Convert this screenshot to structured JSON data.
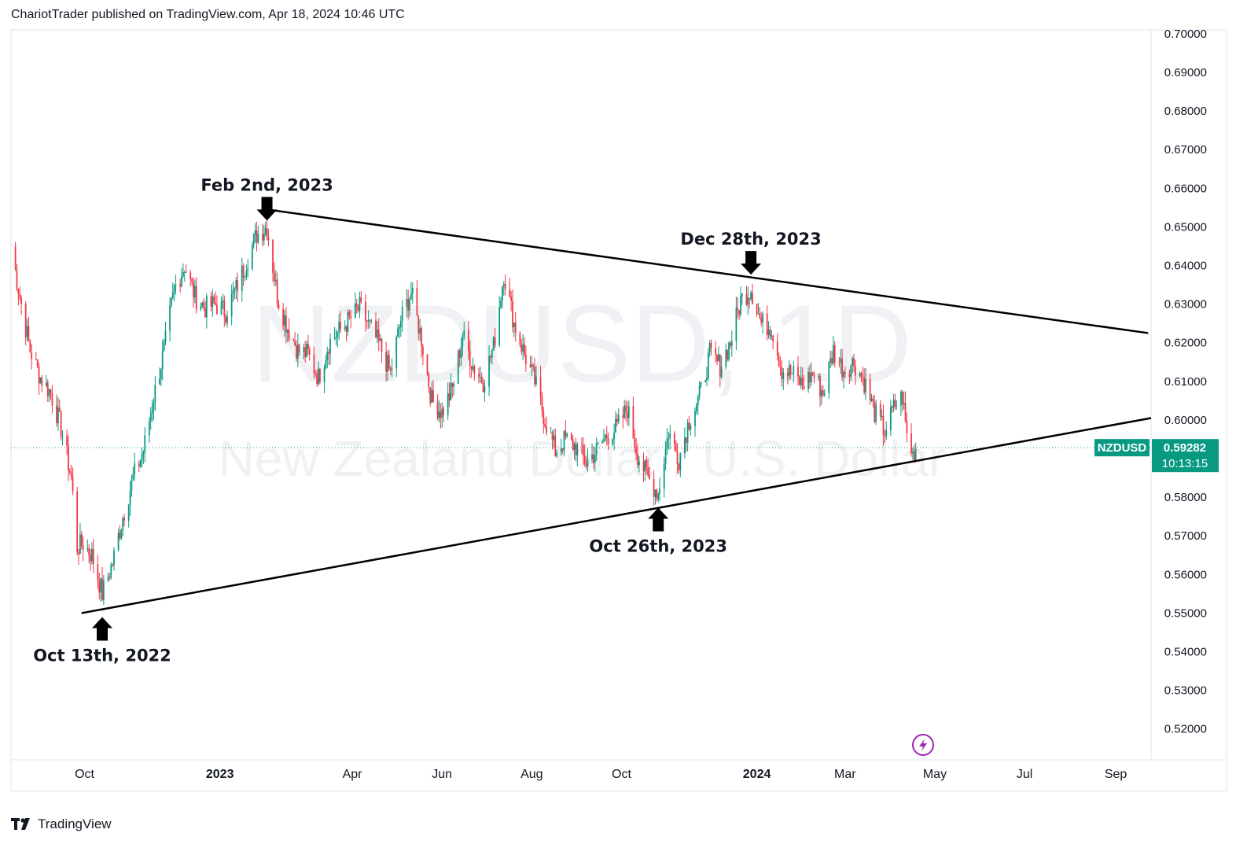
{
  "header": {
    "published_text": "ChariotTrader published on TradingView.com, Apr 18, 2024 10:46 UTC"
  },
  "watermark": {
    "symbol_line": "NZDUSD, 1D",
    "name_line": "New Zealand Dollar / U.S. Dollar"
  },
  "price_badge": {
    "symbol": "NZDUSD",
    "price": "0.59282",
    "countdown": "10:13:15",
    "value": 0.59282,
    "color": "#089981"
  },
  "footer": {
    "brand": "TradingView"
  },
  "icons": {
    "lightning": "lightning-icon",
    "logo": "tradingview-logo-icon"
  },
  "chart_data": {
    "type": "candlestick",
    "title": "NZDUSD, 1D",
    "ylim": [
      0.512,
      0.701
    ],
    "y_ticks": [
      "0.70000",
      "0.69000",
      "0.68000",
      "0.67000",
      "0.66000",
      "0.65000",
      "0.64000",
      "0.63000",
      "0.62000",
      "0.61000",
      "0.60000",
      "0.59000",
      "0.58000",
      "0.57000",
      "0.56000",
      "0.55000",
      "0.54000",
      "0.53000",
      "0.52000"
    ],
    "x_ticks": [
      {
        "label": "Oct",
        "date": "2022-10-01"
      },
      {
        "label": "2023",
        "date": "2023-01-01"
      },
      {
        "label": "Apr",
        "date": "2023-04-01"
      },
      {
        "label": "Jun",
        "date": "2023-06-01"
      },
      {
        "label": "Aug",
        "date": "2023-08-01"
      },
      {
        "label": "Oct",
        "date": "2023-10-01"
      },
      {
        "label": "2024",
        "date": "2024-01-01"
      },
      {
        "label": "Mar",
        "date": "2024-03-01"
      },
      {
        "label": "May",
        "date": "2024-05-01"
      },
      {
        "label": "Jul",
        "date": "2024-07-01"
      },
      {
        "label": "Sep",
        "date": "2024-09-01"
      }
    ],
    "x_range": [
      "2022-08-12",
      "2024-09-25"
    ],
    "up_color": "#089981",
    "down_color": "#f23645",
    "price_path": [
      [
        "2022-08-12",
        0.645
      ],
      [
        "2022-08-18",
        0.632
      ],
      [
        "2022-08-25",
        0.618
      ],
      [
        "2022-09-01",
        0.611
      ],
      [
        "2022-09-08",
        0.607
      ],
      [
        "2022-09-15",
        0.598
      ],
      [
        "2022-09-22",
        0.585
      ],
      [
        "2022-09-26",
        0.567
      ],
      [
        "2022-09-30",
        0.568
      ],
      [
        "2022-10-06",
        0.565
      ],
      [
        "2022-10-13",
        0.555
      ],
      [
        "2022-10-20",
        0.563
      ],
      [
        "2022-10-27",
        0.575
      ],
      [
        "2022-11-03",
        0.585
      ],
      [
        "2022-11-10",
        0.592
      ],
      [
        "2022-11-17",
        0.606
      ],
      [
        "2022-11-24",
        0.618
      ],
      [
        "2022-12-01",
        0.634
      ],
      [
        "2022-12-08",
        0.64
      ],
      [
        "2022-12-15",
        0.632
      ],
      [
        "2022-12-22",
        0.629
      ],
      [
        "2022-12-29",
        0.63
      ],
      [
        "2023-01-05",
        0.628
      ],
      [
        "2023-01-12",
        0.634
      ],
      [
        "2023-01-19",
        0.641
      ],
      [
        "2023-01-26",
        0.648
      ],
      [
        "2023-02-02",
        0.65
      ],
      [
        "2023-02-09",
        0.632
      ],
      [
        "2023-02-16",
        0.624
      ],
      [
        "2023-02-23",
        0.618
      ],
      [
        "2023-03-02",
        0.617
      ],
      [
        "2023-03-09",
        0.611
      ],
      [
        "2023-03-16",
        0.62
      ],
      [
        "2023-03-23",
        0.623
      ],
      [
        "2023-03-30",
        0.626
      ],
      [
        "2023-04-06",
        0.629
      ],
      [
        "2023-04-13",
        0.624
      ],
      [
        "2023-04-20",
        0.619
      ],
      [
        "2023-04-27",
        0.612
      ],
      [
        "2023-05-04",
        0.626
      ],
      [
        "2023-05-11",
        0.633
      ],
      [
        "2023-05-18",
        0.621
      ],
      [
        "2023-05-25",
        0.605
      ],
      [
        "2023-06-01",
        0.602
      ],
      [
        "2023-06-08",
        0.608
      ],
      [
        "2023-06-15",
        0.622
      ],
      [
        "2023-06-22",
        0.614
      ],
      [
        "2023-06-29",
        0.61
      ],
      [
        "2023-07-06",
        0.619
      ],
      [
        "2023-07-13",
        0.638
      ],
      [
        "2023-07-20",
        0.625
      ],
      [
        "2023-07-27",
        0.617
      ],
      [
        "2023-08-03",
        0.61
      ],
      [
        "2023-08-10",
        0.6
      ],
      [
        "2023-08-17",
        0.592
      ],
      [
        "2023-08-24",
        0.595
      ],
      [
        "2023-08-31",
        0.593
      ],
      [
        "2023-09-07",
        0.589
      ],
      [
        "2023-09-14",
        0.592
      ],
      [
        "2023-09-21",
        0.596
      ],
      [
        "2023-09-28",
        0.598
      ],
      [
        "2023-10-05",
        0.603
      ],
      [
        "2023-10-12",
        0.591
      ],
      [
        "2023-10-19",
        0.585
      ],
      [
        "2023-10-26",
        0.581
      ],
      [
        "2023-11-02",
        0.597
      ],
      [
        "2023-11-09",
        0.59
      ],
      [
        "2023-11-16",
        0.6
      ],
      [
        "2023-11-23",
        0.606
      ],
      [
        "2023-11-30",
        0.617
      ],
      [
        "2023-12-07",
        0.614
      ],
      [
        "2023-12-14",
        0.62
      ],
      [
        "2023-12-21",
        0.631
      ],
      [
        "2023-12-28",
        0.634
      ],
      [
        "2024-01-04",
        0.625
      ],
      [
        "2024-01-11",
        0.624
      ],
      [
        "2024-01-18",
        0.613
      ],
      [
        "2024-01-25",
        0.612
      ],
      [
        "2024-02-01",
        0.609
      ],
      [
        "2024-02-08",
        0.612
      ],
      [
        "2024-02-15",
        0.607
      ],
      [
        "2024-02-22",
        0.618
      ],
      [
        "2024-02-29",
        0.613
      ],
      [
        "2024-03-07",
        0.615
      ],
      [
        "2024-03-14",
        0.61
      ],
      [
        "2024-03-21",
        0.602
      ],
      [
        "2024-03-28",
        0.597
      ],
      [
        "2024-04-04",
        0.604
      ],
      [
        "2024-04-09",
        0.606
      ],
      [
        "2024-04-12",
        0.596
      ],
      [
        "2024-04-16",
        0.591
      ],
      [
        "2024-04-18",
        0.5928
      ]
    ],
    "trendlines": [
      {
        "name": "upper",
        "from": [
          "2023-02-02",
          0.6545
        ],
        "to": [
          "2024-09-23",
          0.6225
        ]
      },
      {
        "name": "lower",
        "from": [
          "2022-09-29",
          0.55
        ],
        "to": [
          "2024-09-25",
          0.6005
        ]
      }
    ],
    "annotations": [
      {
        "label": "Feb 2nd, 2023",
        "date": "2023-02-02",
        "price": 0.65,
        "arrow": "down"
      },
      {
        "label": "Dec 28th, 2023",
        "date": "2023-12-28",
        "price": 0.636,
        "arrow": "down"
      },
      {
        "label": "Oct 26th, 2023",
        "date": "2023-10-26",
        "price": 0.5793,
        "arrow": "up"
      },
      {
        "label": "Oct 13th, 2022",
        "date": "2022-10-13",
        "price": 0.551,
        "arrow": "up"
      }
    ]
  }
}
